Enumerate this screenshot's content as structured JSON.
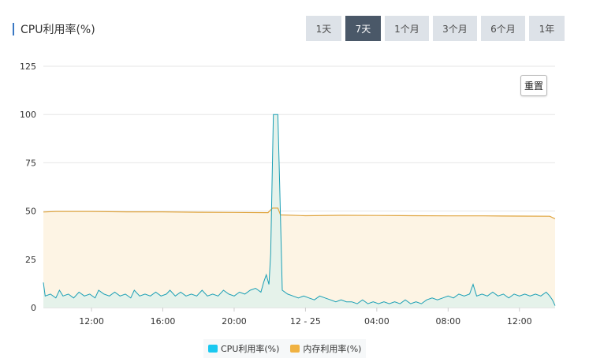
{
  "header": {
    "title": "CPU利用率(%)"
  },
  "range_buttons": [
    {
      "label": "1天",
      "active": false
    },
    {
      "label": "7天",
      "active": true
    },
    {
      "label": "1个月",
      "active": false
    },
    {
      "label": "3个月",
      "active": false
    },
    {
      "label": "6个月",
      "active": false
    },
    {
      "label": "1年",
      "active": false
    }
  ],
  "reset_label": "重置",
  "legend": {
    "cpu_label": "CPU利用率(%)",
    "mem_label": "内存利用率(%)"
  },
  "colors": {
    "cpu_line": "#1a9fb5",
    "cpu_fill": "#e4f1ea",
    "mem_line": "#e0a642",
    "mem_fill": "#fdf4e4",
    "cpu_swatch": "#1ac8f0",
    "mem_swatch": "#f0b242",
    "grid": "#e6e6e6",
    "axis_text": "#333333"
  },
  "chart_data": {
    "type": "area",
    "ylim": [
      0,
      125
    ],
    "yticks": [
      0,
      25,
      50,
      75,
      100,
      125
    ],
    "xlim": [
      9.3,
      38.0
    ],
    "xticks": [
      {
        "value": 12,
        "label": "12:00"
      },
      {
        "value": 16,
        "label": "16:00"
      },
      {
        "value": 20,
        "label": "20:00"
      },
      {
        "value": 24,
        "label": "12 - 25"
      },
      {
        "value": 28,
        "label": "04:00"
      },
      {
        "value": 32,
        "label": "08:00"
      },
      {
        "value": 36,
        "label": "12:00"
      }
    ],
    "series": [
      {
        "name": "CPU利用率(%)",
        "points": [
          [
            9.3,
            13
          ],
          [
            9.4,
            6
          ],
          [
            9.7,
            7
          ],
          [
            10.0,
            5
          ],
          [
            10.2,
            9
          ],
          [
            10.4,
            6
          ],
          [
            10.7,
            7
          ],
          [
            11.0,
            5
          ],
          [
            11.3,
            8
          ],
          [
            11.6,
            6
          ],
          [
            11.9,
            7
          ],
          [
            12.2,
            5
          ],
          [
            12.4,
            9
          ],
          [
            12.7,
            7
          ],
          [
            13.0,
            6
          ],
          [
            13.3,
            8
          ],
          [
            13.6,
            6
          ],
          [
            13.9,
            7
          ],
          [
            14.2,
            5
          ],
          [
            14.4,
            9
          ],
          [
            14.7,
            6
          ],
          [
            15.0,
            7
          ],
          [
            15.3,
            6
          ],
          [
            15.6,
            8
          ],
          [
            15.9,
            6
          ],
          [
            16.2,
            7
          ],
          [
            16.4,
            9
          ],
          [
            16.7,
            6
          ],
          [
            17.0,
            8
          ],
          [
            17.3,
            6
          ],
          [
            17.6,
            7
          ],
          [
            17.9,
            6
          ],
          [
            18.2,
            9
          ],
          [
            18.5,
            6
          ],
          [
            18.8,
            7
          ],
          [
            19.1,
            6
          ],
          [
            19.4,
            9
          ],
          [
            19.7,
            7
          ],
          [
            20.0,
            6
          ],
          [
            20.3,
            8
          ],
          [
            20.6,
            7
          ],
          [
            20.9,
            9
          ],
          [
            21.2,
            10
          ],
          [
            21.5,
            8
          ],
          [
            21.65,
            13
          ],
          [
            21.8,
            17
          ],
          [
            21.95,
            12
          ],
          [
            22.05,
            28
          ],
          [
            22.2,
            100
          ],
          [
            22.45,
            100
          ],
          [
            22.55,
            65
          ],
          [
            22.7,
            9
          ],
          [
            23.0,
            7
          ],
          [
            23.3,
            6
          ],
          [
            23.6,
            5
          ],
          [
            23.9,
            6
          ],
          [
            24.2,
            5
          ],
          [
            24.5,
            4
          ],
          [
            24.8,
            6
          ],
          [
            25.1,
            5
          ],
          [
            25.4,
            4
          ],
          [
            25.7,
            3
          ],
          [
            26.0,
            4
          ],
          [
            26.3,
            3
          ],
          [
            26.6,
            3
          ],
          [
            26.9,
            2
          ],
          [
            27.2,
            4
          ],
          [
            27.5,
            2
          ],
          [
            27.8,
            3
          ],
          [
            28.1,
            2
          ],
          [
            28.4,
            3
          ],
          [
            28.7,
            2
          ],
          [
            29.0,
            3
          ],
          [
            29.3,
            2
          ],
          [
            29.6,
            4
          ],
          [
            29.9,
            2
          ],
          [
            30.2,
            3
          ],
          [
            30.5,
            2
          ],
          [
            30.8,
            4
          ],
          [
            31.1,
            5
          ],
          [
            31.4,
            4
          ],
          [
            31.7,
            5
          ],
          [
            32.0,
            6
          ],
          [
            32.3,
            5
          ],
          [
            32.6,
            7
          ],
          [
            32.9,
            6
          ],
          [
            33.2,
            7
          ],
          [
            33.4,
            12
          ],
          [
            33.6,
            6
          ],
          [
            33.9,
            7
          ],
          [
            34.2,
            6
          ],
          [
            34.5,
            8
          ],
          [
            34.8,
            6
          ],
          [
            35.1,
            7
          ],
          [
            35.4,
            5
          ],
          [
            35.7,
            7
          ],
          [
            36.0,
            6
          ],
          [
            36.3,
            7
          ],
          [
            36.6,
            6
          ],
          [
            36.9,
            7
          ],
          [
            37.2,
            6
          ],
          [
            37.5,
            8
          ],
          [
            37.7,
            6
          ],
          [
            37.85,
            4
          ],
          [
            38.0,
            1
          ]
        ]
      },
      {
        "name": "内存利用率(%)",
        "points": [
          [
            9.3,
            49.5
          ],
          [
            10.0,
            49.8
          ],
          [
            12.0,
            49.8
          ],
          [
            14.0,
            49.6
          ],
          [
            16.0,
            49.6
          ],
          [
            18.0,
            49.4
          ],
          [
            20.0,
            49.3
          ],
          [
            21.9,
            49.2
          ],
          [
            22.15,
            51.5
          ],
          [
            22.45,
            51.5
          ],
          [
            22.6,
            48.0
          ],
          [
            24.0,
            47.6
          ],
          [
            26.0,
            47.8
          ],
          [
            28.0,
            47.7
          ],
          [
            30.0,
            47.6
          ],
          [
            32.0,
            47.5
          ],
          [
            34.0,
            47.5
          ],
          [
            36.0,
            47.4
          ],
          [
            37.7,
            47.3
          ],
          [
            38.0,
            46.0
          ]
        ]
      }
    ]
  }
}
